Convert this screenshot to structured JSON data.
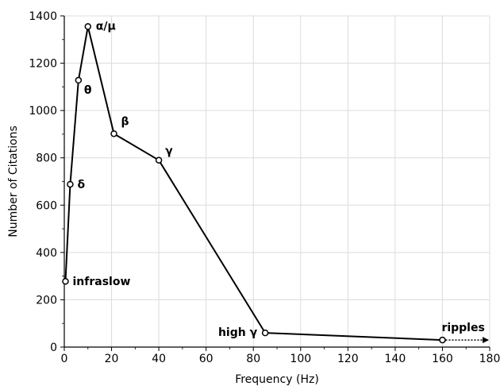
{
  "chart_data": {
    "type": "line",
    "title": "",
    "xlabel": "Frequency (Hz)",
    "ylabel": "Number of Citations",
    "xlim": [
      0,
      180
    ],
    "ylim": [
      0,
      1400
    ],
    "x_ticks": [
      0,
      20,
      40,
      60,
      80,
      100,
      120,
      140,
      160,
      180
    ],
    "y_ticks": [
      0,
      200,
      400,
      600,
      800,
      1000,
      1200,
      1400
    ],
    "grid": true,
    "series": [
      {
        "x": [
          0.5,
          2.5,
          6,
          10,
          21,
          40,
          85,
          160
        ],
        "y": [
          278,
          688,
          1128,
          1355,
          902,
          790,
          60,
          30
        ],
        "labels": [
          "infraslow",
          "δ",
          "θ",
          "α/μ",
          "β",
          "γ",
          "high γ",
          "ripples"
        ],
        "color": "#000000"
      }
    ],
    "extension_arrow": {
      "from_x": 160,
      "to_x": 180,
      "y": 30,
      "style": "dotted"
    }
  }
}
